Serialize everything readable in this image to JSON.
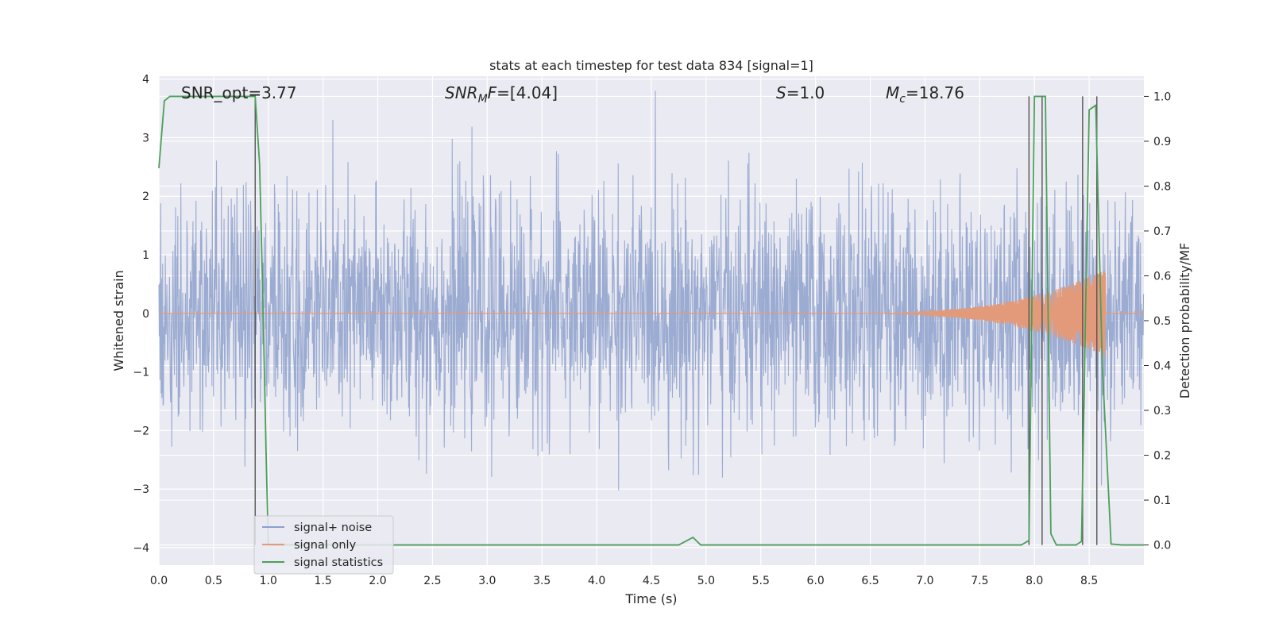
{
  "chart_data": {
    "type": "line",
    "title": "stats at each timestep for test data 834 [signal=1]",
    "xlabel": "Time (s)",
    "ylabel": "Whitened strain",
    "y2label": "Detection probability/MF",
    "xlim": [
      0,
      9.0
    ],
    "ylim": [
      -4.3,
      4.05
    ],
    "y2lim": [
      -0.045,
      1.045
    ],
    "xticks": [
      "0.0",
      "0.5",
      "1.0",
      "1.5",
      "2.0",
      "2.5",
      "3.0",
      "3.5",
      "4.0",
      "4.5",
      "5.0",
      "5.5",
      "6.0",
      "6.5",
      "7.0",
      "7.5",
      "8.0",
      "8.5"
    ],
    "xtick_values": [
      0,
      0.5,
      1,
      1.5,
      2,
      2.5,
      3,
      3.5,
      4,
      4.5,
      5,
      5.5,
      6,
      6.5,
      7,
      7.5,
      8,
      8.5
    ],
    "yticks": [
      "−4",
      "−3",
      "−2",
      "−1",
      "0",
      "1",
      "2",
      "3",
      "4"
    ],
    "ytick_values": [
      -4,
      -3,
      -2,
      -1,
      0,
      1,
      2,
      3,
      4
    ],
    "y2ticks": [
      "0.0",
      "0.1",
      "0.2",
      "0.3",
      "0.4",
      "0.5",
      "0.6",
      "0.7",
      "0.8",
      "0.9",
      "1.0"
    ],
    "y2tick_values": [
      0,
      0.1,
      0.2,
      0.3,
      0.4,
      0.5,
      0.6,
      0.7,
      0.8,
      0.9,
      1.0
    ],
    "grid": true,
    "legend_position": "lower-left",
    "annotations": {
      "snr_opt": "SNR_opt=3.77",
      "snr_mf": "=[4.04]",
      "snr_mf_symbol": "SNR",
      "snr_mf_sub": "M",
      "snr_mf_f": "F",
      "s_symbol": "S",
      "s_value": "=1.0",
      "mc_symbol": "M",
      "mc_sub": "c",
      "mc_value": "=18.76"
    },
    "series": [
      {
        "name": "signal+ noise",
        "color": "#8da0cb",
        "axis": "left",
        "description_values": {
          "x_start": 0,
          "x_end": 9.0,
          "amplitude_typical": 1.0,
          "amplitude_peak": 3.8
        }
      },
      {
        "name": "signal only",
        "color": "#e39a7a",
        "axis": "left",
        "chirp": {
          "x_start": 6.0,
          "x_end": 8.65,
          "peak_amplitude": 0.75
        }
      },
      {
        "name": "signal statistics",
        "color": "#4c9f5a",
        "axis": "right",
        "x": [
          0.0,
          0.05,
          0.1,
          0.15,
          0.2,
          0.3,
          0.4,
          0.5,
          0.6,
          0.7,
          0.8,
          0.88,
          0.92,
          0.95,
          0.98,
          1.0,
          1.05,
          1.1,
          1.5,
          2.0,
          2.5,
          3.0,
          3.5,
          4.0,
          4.5,
          4.75,
          4.88,
          4.95,
          5.0,
          5.5,
          6.0,
          6.5,
          7.0,
          7.5,
          7.88,
          7.95,
          8.0,
          8.05,
          8.1,
          8.15,
          8.2,
          8.3,
          8.38,
          8.43,
          8.5,
          8.56,
          8.62,
          8.7,
          8.8,
          9.0
        ],
        "values": [
          0.84,
          0.99,
          1.0,
          1.0,
          1.0,
          1.0,
          1.0,
          1.0,
          1.0,
          1.0,
          1.0,
          1.0,
          0.85,
          0.55,
          0.2,
          0.0,
          0.0,
          0.0,
          0.0,
          0.0,
          0.0,
          0.0,
          0.0,
          0.0,
          0.0,
          0.0,
          0.017,
          0.0,
          0.0,
          0.0,
          0.0,
          0.0,
          0.0,
          0.0,
          0.0,
          0.01,
          1.0,
          1.0,
          1.0,
          0.025,
          0.0,
          0.0,
          0.0,
          0.008,
          0.97,
          0.98,
          0.4,
          0.002,
          0.0,
          0.0
        ]
      }
    ],
    "vertical_lines": [
      0.88,
      7.95,
      8.07,
      8.44,
      8.57
    ]
  }
}
